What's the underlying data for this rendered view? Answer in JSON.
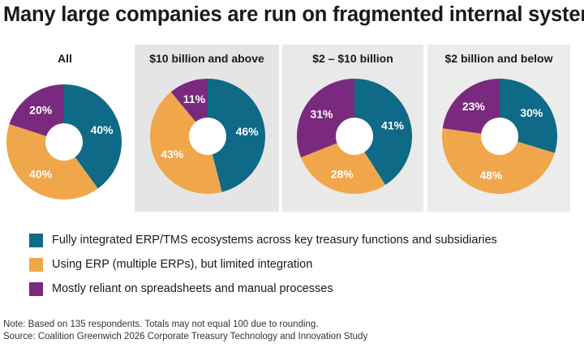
{
  "title": "Many large companies are run on fragmented internal systems",
  "colors": {
    "integrated": "#0e6a86",
    "erp": "#f0a64a",
    "spreadsheets": "#7a2a7e",
    "hole": "#ffffff"
  },
  "legend": [
    {
      "key": "integrated",
      "label": "Fully integrated ERP/TMS ecosystems across key treasury functions and subsidiaries"
    },
    {
      "key": "erp",
      "label": "Using ERP (multiple ERPs), but limited integration"
    },
    {
      "key": "spreadsheets",
      "label": "Mostly reliant on spreadsheets and manual processes"
    }
  ],
  "chart_data": [
    {
      "type": "pie",
      "title": "All",
      "series": [
        {
          "key": "integrated",
          "value": 40,
          "label": "40%"
        },
        {
          "key": "erp",
          "value": 40,
          "label": "40%"
        },
        {
          "key": "spreadsheets",
          "value": 20,
          "label": "20%"
        }
      ]
    },
    {
      "type": "pie",
      "title": "$10 billion and above",
      "series": [
        {
          "key": "integrated",
          "value": 46,
          "label": "46%"
        },
        {
          "key": "erp",
          "value": 43,
          "label": "43%"
        },
        {
          "key": "spreadsheets",
          "value": 11,
          "label": "11%"
        }
      ]
    },
    {
      "type": "pie",
      "title": "$2 – $10 billion",
      "series": [
        {
          "key": "integrated",
          "value": 41,
          "label": "41%"
        },
        {
          "key": "erp",
          "value": 28,
          "label": "28%"
        },
        {
          "key": "spreadsheets",
          "value": 31,
          "label": "31%"
        }
      ]
    },
    {
      "type": "pie",
      "title": "$2 billion and below",
      "series": [
        {
          "key": "integrated",
          "value": 30,
          "label": "30%"
        },
        {
          "key": "erp",
          "value": 48,
          "label": "48%"
        },
        {
          "key": "spreadsheets",
          "value": 23,
          "label": "23%"
        }
      ]
    }
  ],
  "note": "Note: Based on 135 respondents. Totals may not equal 100 due to rounding.",
  "source": "Source: Coalition Greenwich 2026 Corporate Treasury Technology and Innovation Study"
}
